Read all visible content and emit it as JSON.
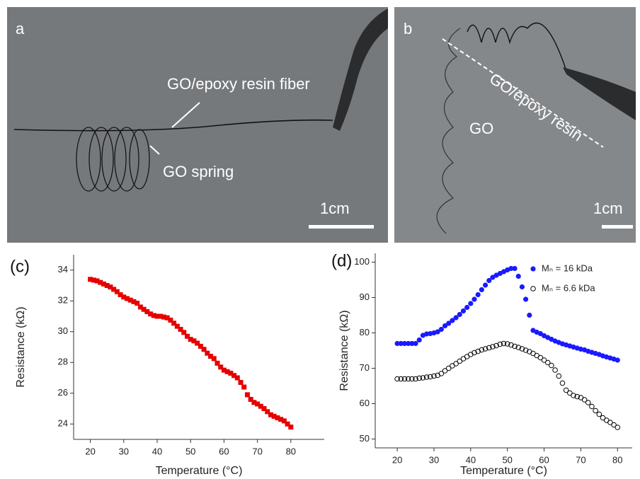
{
  "photos": [
    {
      "label": "a",
      "annotations": [
        "GO/epoxy resin fiber",
        "GO spring"
      ],
      "scale_bar": "1cm"
    },
    {
      "label": "b",
      "annotations": [
        "GO/epoxy resin",
        "GO"
      ],
      "scale_bar": "1cm"
    }
  ],
  "chart_data": [
    {
      "type": "scatter",
      "panel_label": "(c)",
      "x_label": "Temperature (°C)",
      "y_label": "Resistance (kΩ)",
      "xlim": [
        15,
        90
      ],
      "ylim": [
        23,
        35
      ],
      "xticks": [
        20,
        30,
        40,
        50,
        60,
        70,
        80
      ],
      "yticks": [
        24,
        26,
        28,
        30,
        32,
        34
      ],
      "marker": "square",
      "color": "#e60000",
      "x": [
        20,
        21,
        22,
        23,
        24,
        25,
        26,
        27,
        28,
        29,
        30,
        31,
        32,
        33,
        34,
        35,
        36,
        37,
        38,
        39,
        40,
        41,
        42,
        43,
        44,
        45,
        46,
        47,
        48,
        49,
        50,
        51,
        52,
        53,
        54,
        55,
        56,
        57,
        58,
        59,
        60,
        61,
        62,
        63,
        64,
        65,
        66,
        67,
        68,
        69,
        70,
        71,
        72,
        73,
        74,
        75,
        76,
        77,
        78,
        79,
        80
      ],
      "values": [
        33.4,
        33.35,
        33.3,
        33.2,
        33.1,
        33.0,
        32.9,
        32.75,
        32.6,
        32.4,
        32.25,
        32.15,
        32.05,
        31.95,
        31.85,
        31.6,
        31.45,
        31.3,
        31.15,
        31.05,
        31.0,
        31.0,
        30.95,
        30.9,
        30.75,
        30.55,
        30.35,
        30.15,
        29.95,
        29.7,
        29.5,
        29.4,
        29.25,
        29.05,
        28.85,
        28.6,
        28.4,
        28.25,
        27.95,
        27.7,
        27.5,
        27.4,
        27.3,
        27.15,
        27.0,
        26.7,
        26.4,
        25.9,
        25.6,
        25.4,
        25.3,
        25.15,
        25.0,
        24.8,
        24.6,
        24.5,
        24.4,
        24.3,
        24.2,
        24.0,
        23.8
      ]
    },
    {
      "type": "scatter",
      "panel_label": "(d)",
      "x_label": "Temperature (°C)",
      "y_label": "Resistance (kΩ)",
      "xlim": [
        14,
        84
      ],
      "ylim": [
        47.5,
        102.5
      ],
      "xticks": [
        20,
        30,
        40,
        50,
        60,
        70,
        80
      ],
      "yticks": [
        50,
        60,
        70,
        80,
        90,
        100
      ],
      "x": [
        20,
        21,
        22,
        23,
        24,
        25,
        26,
        27,
        28,
        29,
        30,
        31,
        32,
        33,
        34,
        35,
        36,
        37,
        38,
        39,
        40,
        41,
        42,
        43,
        44,
        45,
        46,
        47,
        48,
        49,
        50,
        51,
        52,
        53,
        54,
        55,
        56,
        57,
        58,
        59,
        60,
        61,
        62,
        63,
        64,
        65,
        66,
        67,
        68,
        69,
        70,
        71,
        72,
        73,
        74,
        75,
        76,
        77,
        78,
        79,
        80
      ],
      "series": [
        {
          "name": "Mₙ = 16 kDa",
          "color": "#1a1aff",
          "marker": "filled-circle",
          "values": [
            77.0,
            77.0,
            77.0,
            77.0,
            77.0,
            77.0,
            78.0,
            79.3,
            79.7,
            79.8,
            80.0,
            80.3,
            81.0,
            82.0,
            82.7,
            83.5,
            84.3,
            85.2,
            86.2,
            87.2,
            88.3,
            89.5,
            90.8,
            92.2,
            93.5,
            94.8,
            95.7,
            96.3,
            96.8,
            97.3,
            97.8,
            98.2,
            98.2,
            96.0,
            93.0,
            89.5,
            85.0,
            80.7,
            80.2,
            79.8,
            79.2,
            78.7,
            78.2,
            77.7,
            77.3,
            76.9,
            76.6,
            76.3,
            76.0,
            75.7,
            75.4,
            75.2,
            74.8,
            74.5,
            74.2,
            73.9,
            73.5,
            73.2,
            72.9,
            72.6,
            72.3
          ]
        },
        {
          "name": "Mₙ = 6.6 kDa",
          "color": "#000000",
          "marker": "open-circle",
          "values": [
            67.0,
            67.0,
            67.0,
            67.0,
            67.0,
            67.0,
            67.2,
            67.3,
            67.5,
            67.6,
            67.8,
            68.0,
            68.5,
            69.3,
            70.0,
            70.7,
            71.3,
            72.0,
            72.7,
            73.3,
            73.9,
            74.4,
            74.8,
            75.2,
            75.5,
            75.8,
            76.1,
            76.4,
            76.8,
            77.0,
            76.9,
            76.6,
            76.2,
            75.9,
            75.5,
            75.1,
            74.7,
            74.2,
            73.6,
            73.0,
            72.3,
            71.6,
            70.8,
            69.5,
            67.8,
            65.8,
            63.8,
            63.0,
            62.3,
            62.0,
            61.7,
            61.1,
            60.3,
            59.2,
            58.0,
            57.0,
            56.0,
            55.3,
            54.7,
            54.0,
            53.3
          ]
        }
      ]
    }
  ]
}
